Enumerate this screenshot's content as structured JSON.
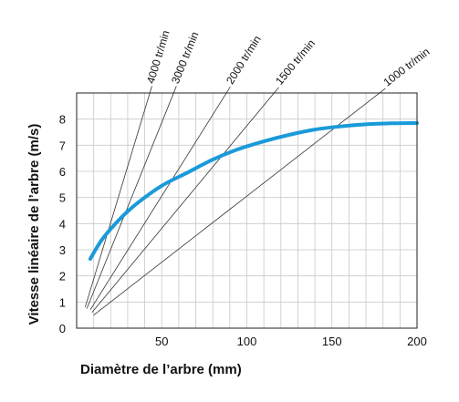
{
  "chart_data": {
    "type": "line",
    "xlabel": "Diamètre de l’arbre (mm)",
    "ylabel": "Vitesse linéaire de l’arbre (m/s)",
    "xlim": [
      0,
      200
    ],
    "ylim": [
      0,
      9
    ],
    "x_ticks": [
      50,
      100,
      150,
      200
    ],
    "y_ticks": [
      0,
      1,
      2,
      3,
      4,
      5,
      6,
      7,
      8
    ],
    "grid": true,
    "series": [
      {
        "color": "#1a9ad9",
        "x": [
          8,
          15,
          25,
          35,
          50,
          65,
          80,
          95,
          110,
          125,
          140,
          155,
          170,
          185,
          200
        ],
        "y": [
          2.65,
          3.4,
          4.15,
          4.75,
          5.45,
          5.95,
          6.45,
          6.85,
          7.15,
          7.4,
          7.6,
          7.72,
          7.8,
          7.84,
          7.85
        ]
      }
    ],
    "reference_lines": [
      {
        "label": "4000 tr/min",
        "x": [
          5,
          43
        ],
        "y": [
          0.8,
          9.0
        ]
      },
      {
        "label": "3000 tr/min",
        "x": [
          6,
          57
        ],
        "y": [
          0.75,
          9.0
        ]
      },
      {
        "label": "2000 tr/min",
        "x": [
          8,
          88
        ],
        "y": [
          0.7,
          9.0
        ]
      },
      {
        "label": "1500 tr/min",
        "x": [
          9,
          116
        ],
        "y": [
          0.6,
          9.0
        ]
      },
      {
        "label": "1000 tr/min",
        "x": [
          10,
          178
        ],
        "y": [
          0.5,
          9.0
        ]
      }
    ]
  }
}
